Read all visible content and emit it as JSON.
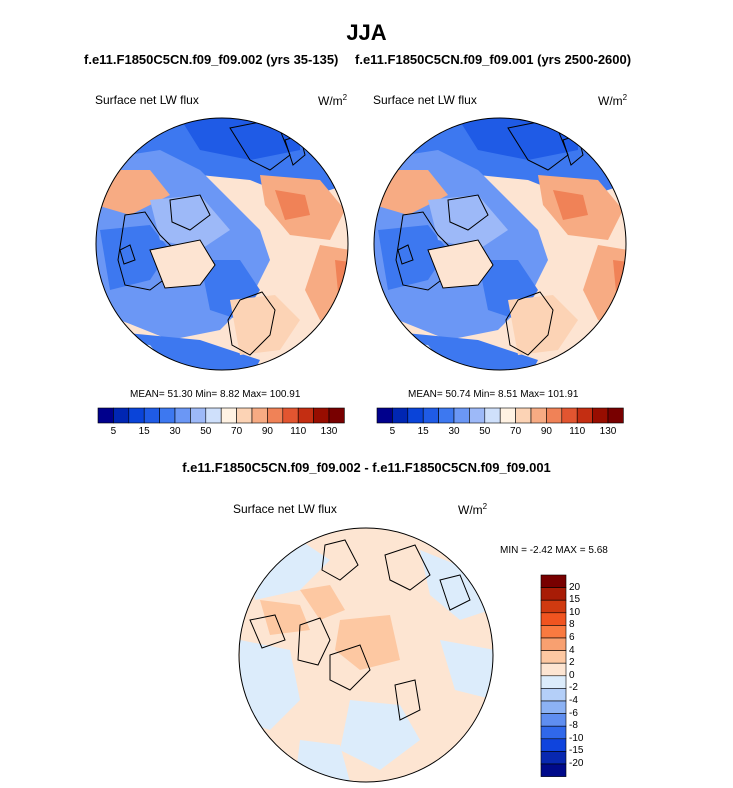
{
  "figure": {
    "season": "JJA",
    "left_case_title": "f.e11.F1850C5CN.f09_f09.002 (yrs 35-135)",
    "right_case_title": "f.e11.F1850C5CN.f09_f09.001 (yrs 2500-2600)",
    "diff_title": "f.e11.F1850C5CN.f09_f09.002 - f.e11.F1850C5CN.f09_f09.001"
  },
  "panels": [
    {
      "variable": "Surface net LW flux",
      "units": "W/m",
      "units_exp": "2",
      "stats_text": "MEAN=  51.30  Min=   8.82  Max= 100.91",
      "mean": 51.3,
      "min": 8.82,
      "max": 100.91
    },
    {
      "variable": "Surface net LW flux",
      "units": "W/m",
      "units_exp": "2",
      "stats_text": "MEAN=  50.74  Min=   8.51  Max= 101.91",
      "mean": 50.74,
      "min": 8.51,
      "max": 101.91
    }
  ],
  "diff_panel": {
    "variable": "Surface net LW flux",
    "units": "W/m",
    "units_exp": "2",
    "stats_text": "MIN =  -2.42 MAX =   5.68",
    "min": -2.42,
    "max": 5.68
  },
  "colorbar_horizontal": {
    "colors": [
      "#00008c",
      "#0026b3",
      "#0a44d9",
      "#1f5be6",
      "#3d78f0",
      "#6b97f5",
      "#9db9f8",
      "#cfe0fb",
      "#fff2e3",
      "#fcd3b5",
      "#f7ab83",
      "#f08257",
      "#e25530",
      "#c42e12",
      "#980d00",
      "#780000"
    ],
    "labels": [
      "5",
      "15",
      "30",
      "50",
      "70",
      "90",
      "110",
      "130"
    ]
  },
  "colorbar_vertical": {
    "colors": [
      "#780000",
      "#a81c06",
      "#d03a10",
      "#f05420",
      "#fa7a40",
      "#f8a070",
      "#fdc8a2",
      "#fde5d2",
      "#dcecfb",
      "#b4cff8",
      "#8cb2f4",
      "#5f8ef0",
      "#3068ea",
      "#0f44dd",
      "#0828b0",
      "#000a8a"
    ],
    "labels": [
      "20",
      "15",
      "10",
      "8",
      "6",
      "4",
      "2",
      "0",
      "-2",
      "-4",
      "-6",
      "-8",
      "-10",
      "-15",
      "-20"
    ]
  },
  "map_icons": {
    "map1": "polar-stereo-map",
    "map2": "polar-stereo-map",
    "map3": "polar-stereo-diff-map"
  }
}
